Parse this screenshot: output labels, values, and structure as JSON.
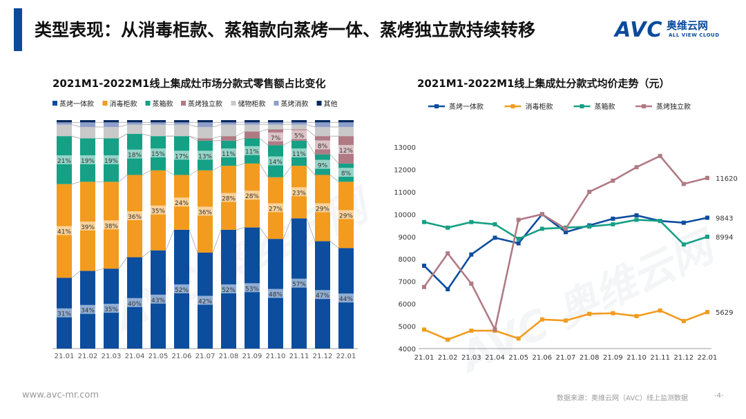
{
  "slide": {
    "title": "类型表现：从消毒柜款、蒸箱款向蒸烤一体、蒸烤独立款持续转移",
    "accent_color": "#0a4a9c"
  },
  "logo": {
    "mark": "AVC",
    "cn": "奥维云网",
    "en": "ALL VIEW CLOUD"
  },
  "footer": {
    "url": "www.avc-mr.com",
    "source": "数据来源：奥维云网（AVC）线上监测数据",
    "page": "-4-"
  },
  "watermark": "AVC 奥维云网",
  "chart_data": [
    {
      "type": "bar",
      "stacked": true,
      "percent": true,
      "title": "2021M1-2022M1线上集成灶市场分款式零售额占比变化",
      "categories": [
        "21.01",
        "21.02",
        "21.03",
        "21.04",
        "21.05",
        "21.06",
        "21.07",
        "21.08",
        "21.09",
        "21.10",
        "21.11",
        "21.12",
        "22.01"
      ],
      "series": [
        {
          "name": "蒸烤一体款",
          "color": "#0c4d9e",
          "values": [
            31,
            34,
            35,
            40,
            43,
            52,
            42,
            52,
            53,
            48,
            57,
            47,
            44
          ],
          "labels": [
            "31%",
            "34%",
            "35%",
            "40%",
            "43%",
            "52%",
            "42%",
            "52%",
            "53%",
            "48%",
            "57%",
            "47%",
            "44%"
          ]
        },
        {
          "name": "消毒柜款",
          "color": "#f29b1f",
          "values": [
            41,
            39,
            38,
            36,
            35,
            24,
            36,
            28,
            28,
            27,
            23,
            29,
            29
          ],
          "labels": [
            "41%",
            "39%",
            "38%",
            "36%",
            "35%",
            "24%",
            "36%",
            "28%",
            "28%",
            "27%",
            "23%",
            "29%",
            "29%"
          ]
        },
        {
          "name": "蒸箱款",
          "color": "#16a085",
          "values": [
            21,
            19,
            19,
            18,
            15,
            17,
            13,
            11,
            11,
            14,
            11,
            9,
            8
          ],
          "labels": [
            "21%",
            "19%",
            "19%",
            "18%",
            "15%",
            "17%",
            "13%",
            "11%",
            "11%",
            "14%",
            "11%",
            "9%",
            "8%"
          ]
        },
        {
          "name": "蒸烤独立款",
          "color": "#b07a84",
          "values": [
            0,
            0,
            0,
            0,
            0,
            0,
            1,
            2,
            3,
            7,
            5,
            8,
            12
          ],
          "labels": [
            "",
            "",
            "",
            "",
            "",
            "",
            "",
            "",
            "",
            "7%",
            "5%",
            "8%",
            "12%"
          ]
        },
        {
          "name": "储物柜款",
          "color": "#c9c9c9",
          "values": [
            5,
            5,
            5,
            4,
            5,
            5,
            5,
            5,
            3,
            2,
            2,
            4,
            4
          ],
          "labels": [
            "",
            "",
            "",
            "",
            "",
            "",
            "",
            "",
            "",
            "",
            "",
            "",
            ""
          ]
        },
        {
          "name": "蒸烤消款",
          "color": "#8e9fcc",
          "values": [
            1,
            2,
            2,
            1,
            1,
            1,
            2,
            1,
            1,
            1,
            1,
            2,
            2
          ],
          "labels": [
            "",
            "",
            "",
            "",
            "",
            "",
            "",
            "",
            "",
            "",
            "",
            "",
            ""
          ]
        },
        {
          "name": "其他",
          "color": "#0a2a5e",
          "values": [
            1,
            1,
            1,
            1,
            1,
            1,
            1,
            1,
            1,
            1,
            1,
            1,
            1
          ],
          "labels": [
            "",
            "",
            "",
            "",
            "",
            "",
            "",
            "",
            "",
            "",
            "",
            "",
            ""
          ]
        }
      ],
      "ylim": [
        0,
        100
      ]
    },
    {
      "type": "line",
      "title": "2021M1-2022M1线上集成灶分款式均价走势（元）",
      "categories": [
        "21.01",
        "21.02",
        "21.03",
        "21.04",
        "21.05",
        "21.06",
        "21.07",
        "21.08",
        "21.09",
        "21.10",
        "21.11",
        "21.12",
        "22.01"
      ],
      "yticks": [
        4000,
        5000,
        6000,
        7000,
        8000,
        9000,
        10000,
        11000,
        12000,
        13000
      ],
      "ylim": [
        4000,
        13000
      ],
      "series": [
        {
          "name": "蒸烤一体款",
          "color": "#0c4d9e",
          "values": [
            7700,
            6650,
            8200,
            8950,
            8700,
            10000,
            9200,
            9500,
            9800,
            9950,
            9700,
            9620,
            9843
          ],
          "end_label": "9843"
        },
        {
          "name": "消毒柜款",
          "color": "#f29b1f",
          "values": [
            4850,
            4400,
            4800,
            4800,
            4450,
            5300,
            5250,
            5550,
            5580,
            5450,
            5700,
            5230,
            5629
          ],
          "end_label": "5629"
        },
        {
          "name": "蒸箱款",
          "color": "#16a085",
          "values": [
            9650,
            9400,
            9650,
            9550,
            8900,
            9350,
            9400,
            9450,
            9550,
            9750,
            9700,
            8650,
            8994
          ],
          "end_label": "8994"
        },
        {
          "name": "蒸烤独立款",
          "color": "#b07a84",
          "values": [
            6750,
            8250,
            6900,
            4850,
            9750,
            10000,
            9350,
            11000,
            11500,
            12100,
            12600,
            11350,
            11620
          ],
          "end_label": "11620"
        }
      ]
    }
  ]
}
